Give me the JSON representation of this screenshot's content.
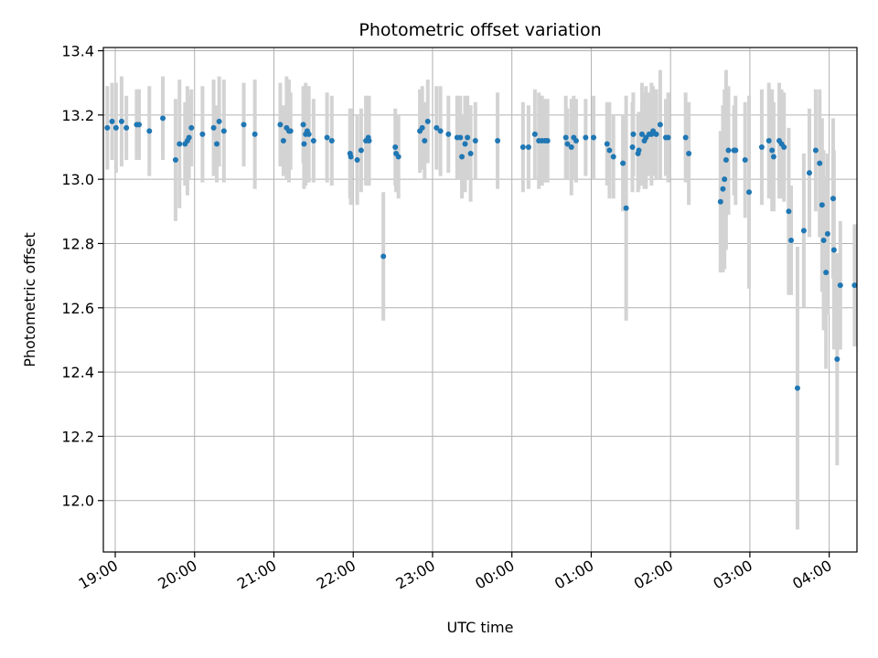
{
  "chart_data": {
    "type": "scatter",
    "title": "Photometric offset variation",
    "xlabel": "UTC time",
    "ylabel": "Photometric offset",
    "grid": true,
    "legend": "none",
    "colors": {
      "point": "#1f77b4",
      "errorbar": "#d3d3d3",
      "grid": "#b0b0b0"
    },
    "x_axis": {
      "unit": "hours since 19:00 UTC",
      "range": [
        -0.15,
        9.35
      ],
      "ticks": [
        0,
        1,
        2,
        3,
        4,
        5,
        6,
        7,
        8,
        9
      ],
      "tick_labels": [
        "19:00",
        "20:00",
        "21:00",
        "22:00",
        "23:00",
        "00:00",
        "01:00",
        "02:00",
        "03:00",
        "04:00"
      ]
    },
    "y_axis": {
      "range": [
        11.84,
        13.41
      ],
      "ticks": [
        12.0,
        12.2,
        12.4,
        12.6,
        12.8,
        13.0,
        13.2,
        13.4
      ],
      "tick_labels": [
        "12.0",
        "12.2",
        "12.4",
        "12.6",
        "12.8",
        "13.0",
        "13.2",
        "13.4"
      ]
    },
    "points": [
      [
        -0.1,
        13.16,
        0.13
      ],
      [
        -0.04,
        13.18,
        0.12
      ],
      [
        0.01,
        13.16,
        0.14
      ],
      [
        0.08,
        13.18,
        0.14
      ],
      [
        0.14,
        13.16,
        0.1
      ],
      [
        0.27,
        13.17,
        0.11
      ],
      [
        0.3,
        13.17,
        0.11
      ],
      [
        0.43,
        13.15,
        0.14
      ],
      [
        0.6,
        13.19,
        0.13
      ],
      [
        0.76,
        13.06,
        0.19
      ],
      [
        0.81,
        13.11,
        0.2
      ],
      [
        0.88,
        13.11,
        0.13
      ],
      [
        0.91,
        13.12,
        0.17
      ],
      [
        0.93,
        13.13,
        0.13
      ],
      [
        0.96,
        13.16,
        0.12
      ],
      [
        1.1,
        13.14,
        0.15
      ],
      [
        1.24,
        13.16,
        0.15
      ],
      [
        1.28,
        13.11,
        0.12
      ],
      [
        1.31,
        13.18,
        0.14
      ],
      [
        1.37,
        13.15,
        0.16
      ],
      [
        1.62,
        13.17,
        0.13
      ],
      [
        1.76,
        13.14,
        0.17
      ],
      [
        2.08,
        13.17,
        0.13
      ],
      [
        2.12,
        13.12,
        0.11
      ],
      [
        2.16,
        13.16,
        0.16
      ],
      [
        2.19,
        13.15,
        0.16
      ],
      [
        2.21,
        13.15,
        0.12
      ],
      [
        2.37,
        13.17,
        0.12
      ],
      [
        2.38,
        13.11,
        0.14
      ],
      [
        2.4,
        13.14,
        0.16
      ],
      [
        2.42,
        13.15,
        0.14
      ],
      [
        2.44,
        13.14,
        0.15
      ],
      [
        2.5,
        13.12,
        0.13
      ],
      [
        2.67,
        13.13,
        0.14
      ],
      [
        2.73,
        13.12,
        0.14
      ],
      [
        2.96,
        13.08,
        0.14
      ],
      [
        2.97,
        13.07,
        0.15
      ],
      [
        3.05,
        13.06,
        0.14
      ],
      [
        3.1,
        13.09,
        0.13
      ],
      [
        3.16,
        13.12,
        0.14
      ],
      [
        3.19,
        13.13,
        0.12
      ],
      [
        3.2,
        13.12,
        0.14
      ],
      [
        3.38,
        12.76,
        0.2
      ],
      [
        3.53,
        13.1,
        0.12
      ],
      [
        3.54,
        13.08,
        0.12
      ],
      [
        3.57,
        13.07,
        0.13
      ],
      [
        3.84,
        13.15,
        0.13
      ],
      [
        3.87,
        13.16,
        0.13
      ],
      [
        3.9,
        13.12,
        0.12
      ],
      [
        3.94,
        13.18,
        0.13
      ],
      [
        4.05,
        13.16,
        0.13
      ],
      [
        4.1,
        13.15,
        0.14
      ],
      [
        4.2,
        13.14,
        0.12
      ],
      [
        4.31,
        13.13,
        0.13
      ],
      [
        4.35,
        13.13,
        0.13
      ],
      [
        4.37,
        13.07,
        0.13
      ],
      [
        4.41,
        13.11,
        0.15
      ],
      [
        4.44,
        13.13,
        0.13
      ],
      [
        4.48,
        13.08,
        0.15
      ],
      [
        4.54,
        13.12,
        0.12
      ],
      [
        4.82,
        13.12,
        0.15
      ],
      [
        5.14,
        13.1,
        0.14
      ],
      [
        5.21,
        13.1,
        0.13
      ],
      [
        5.29,
        13.14,
        0.14
      ],
      [
        5.34,
        13.12,
        0.15
      ],
      [
        5.38,
        13.12,
        0.14
      ],
      [
        5.42,
        13.12,
        0.13
      ],
      [
        5.45,
        13.12,
        0.13
      ],
      [
        5.68,
        13.13,
        0.13
      ],
      [
        5.7,
        13.11,
        0.11
      ],
      [
        5.75,
        13.1,
        0.15
      ],
      [
        5.78,
        13.13,
        0.13
      ],
      [
        5.81,
        13.12,
        0.13
      ],
      [
        5.93,
        13.13,
        0.12
      ],
      [
        6.03,
        13.13,
        0.13
      ],
      [
        6.2,
        13.11,
        0.13
      ],
      [
        6.23,
        13.09,
        0.15
      ],
      [
        6.28,
        13.07,
        0.13
      ],
      [
        6.4,
        13.05,
        0.15
      ],
      [
        6.44,
        12.91,
        0.35
      ],
      [
        6.52,
        13.1,
        0.14
      ],
      [
        6.53,
        13.14,
        0.13
      ],
      [
        6.59,
        13.08,
        0.12
      ],
      [
        6.6,
        13.09,
        0.12
      ],
      [
        6.64,
        13.14,
        0.16
      ],
      [
        6.67,
        13.12,
        0.15
      ],
      [
        6.69,
        13.13,
        0.16
      ],
      [
        6.73,
        13.14,
        0.13
      ],
      [
        6.76,
        13.14,
        0.16
      ],
      [
        6.78,
        13.15,
        0.14
      ],
      [
        6.82,
        13.14,
        0.14
      ],
      [
        6.87,
        13.17,
        0.17
      ],
      [
        6.94,
        13.13,
        0.12
      ],
      [
        6.97,
        13.13,
        0.14
      ],
      [
        7.19,
        13.13,
        0.14
      ],
      [
        7.23,
        13.08,
        0.16
      ],
      [
        7.63,
        12.93,
        0.22
      ],
      [
        7.66,
        12.97,
        0.26
      ],
      [
        7.68,
        13.0,
        0.28
      ],
      [
        7.7,
        13.06,
        0.28
      ],
      [
        7.73,
        13.09,
        0.2
      ],
      [
        7.8,
        13.09,
        0.14
      ],
      [
        7.82,
        13.09,
        0.17
      ],
      [
        7.94,
        13.06,
        0.18
      ],
      [
        7.99,
        12.96,
        0.3
      ],
      [
        8.15,
        13.1,
        0.18
      ],
      [
        8.24,
        13.12,
        0.18
      ],
      [
        8.28,
        13.09,
        0.19
      ],
      [
        8.3,
        13.07,
        0.17
      ],
      [
        8.37,
        13.12,
        0.18
      ],
      [
        8.4,
        13.11,
        0.17
      ],
      [
        8.43,
        13.1,
        0.17
      ],
      [
        8.49,
        12.9,
        0.26
      ],
      [
        8.52,
        12.81,
        0.17
      ],
      [
        8.6,
        12.35,
        0.44
      ],
      [
        8.68,
        12.84,
        0.24
      ],
      [
        8.75,
        13.02,
        0.2
      ],
      [
        8.83,
        13.09,
        0.19
      ],
      [
        8.88,
        13.05,
        0.23
      ],
      [
        8.91,
        12.92,
        0.27
      ],
      [
        8.93,
        12.81,
        0.28
      ],
      [
        8.96,
        12.71,
        0.3
      ],
      [
        8.98,
        12.83,
        0.25
      ],
      [
        9.05,
        12.94,
        0.25
      ],
      [
        9.06,
        12.78,
        0.31
      ],
      [
        9.1,
        12.44,
        0.33
      ],
      [
        9.14,
        12.67,
        0.2
      ],
      [
        9.32,
        12.67,
        0.19
      ]
    ]
  }
}
